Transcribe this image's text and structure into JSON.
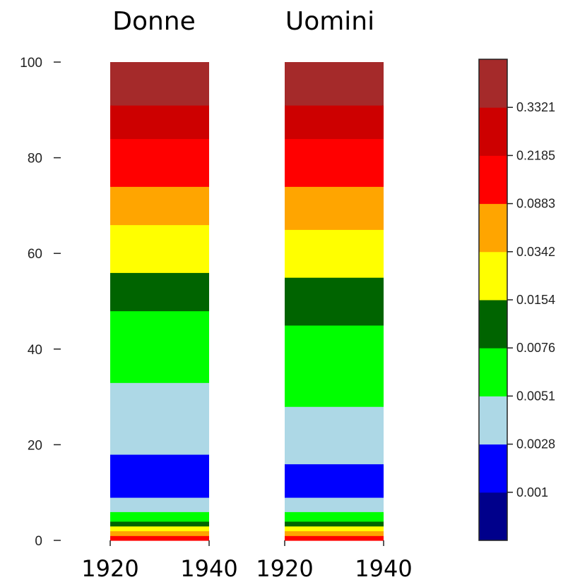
{
  "chart_data": {
    "type": "heatmap",
    "panels": [
      {
        "title": "Donne",
        "x_ticks": [
          "1920",
          "1940"
        ],
        "bands": [
          {
            "from": 0,
            "to": 1,
            "color": "#ff0000"
          },
          {
            "from": 1,
            "to": 2,
            "color": "#ffa500"
          },
          {
            "from": 2,
            "to": 3,
            "color": "#ffff00"
          },
          {
            "from": 3,
            "to": 4,
            "color": "#006400"
          },
          {
            "from": 4,
            "to": 6,
            "color": "#00ff00"
          },
          {
            "from": 6,
            "to": 9,
            "color": "#add8e6"
          },
          {
            "from": 9,
            "to": 18,
            "color": "#0000ff"
          },
          {
            "from": 18,
            "to": 33,
            "color": "#add8e6"
          },
          {
            "from": 33,
            "to": 48,
            "color": "#00ff00"
          },
          {
            "from": 48,
            "to": 56,
            "color": "#006400"
          },
          {
            "from": 56,
            "to": 66,
            "color": "#ffff00"
          },
          {
            "from": 66,
            "to": 74,
            "color": "#ffa500"
          },
          {
            "from": 74,
            "to": 84,
            "color": "#ff0000"
          },
          {
            "from": 84,
            "to": 91,
            "color": "#cd0000"
          },
          {
            "from": 91,
            "to": 100,
            "color": "#a52a2a"
          }
        ]
      },
      {
        "title": "Uomini",
        "x_ticks": [
          "1920",
          "1940"
        ],
        "bands": [
          {
            "from": 0,
            "to": 1,
            "color": "#ff0000"
          },
          {
            "from": 1,
            "to": 2,
            "color": "#ffa500"
          },
          {
            "from": 2,
            "to": 3,
            "color": "#ffff00"
          },
          {
            "from": 3,
            "to": 4,
            "color": "#006400"
          },
          {
            "from": 4,
            "to": 6,
            "color": "#00ff00"
          },
          {
            "from": 6,
            "to": 9,
            "color": "#add8e6"
          },
          {
            "from": 9,
            "to": 16,
            "color": "#0000ff"
          },
          {
            "from": 16,
            "to": 28,
            "color": "#add8e6"
          },
          {
            "from": 28,
            "to": 45,
            "color": "#00ff00"
          },
          {
            "from": 45,
            "to": 55,
            "color": "#006400"
          },
          {
            "from": 55,
            "to": 65,
            "color": "#ffff00"
          },
          {
            "from": 65,
            "to": 74,
            "color": "#ffa500"
          },
          {
            "from": 74,
            "to": 84,
            "color": "#ff0000"
          },
          {
            "from": 84,
            "to": 91,
            "color": "#cd0000"
          },
          {
            "from": 91,
            "to": 100,
            "color": "#a52a2a"
          }
        ]
      }
    ],
    "y_ticks": [
      0,
      20,
      40,
      60,
      80,
      100
    ],
    "ylim": [
      0,
      100
    ],
    "colorbar": {
      "colors": [
        "#00008b",
        "#0000ff",
        "#add8e6",
        "#00ff00",
        "#006400",
        "#ffff00",
        "#ffa500",
        "#ff0000",
        "#cd0000",
        "#a52a2a"
      ],
      "tick_labels": [
        "0.001",
        "0.0028",
        "0.0051",
        "0.0076",
        "0.0154",
        "0.0342",
        "0.0883",
        "0.2185",
        "0.3321"
      ]
    }
  }
}
